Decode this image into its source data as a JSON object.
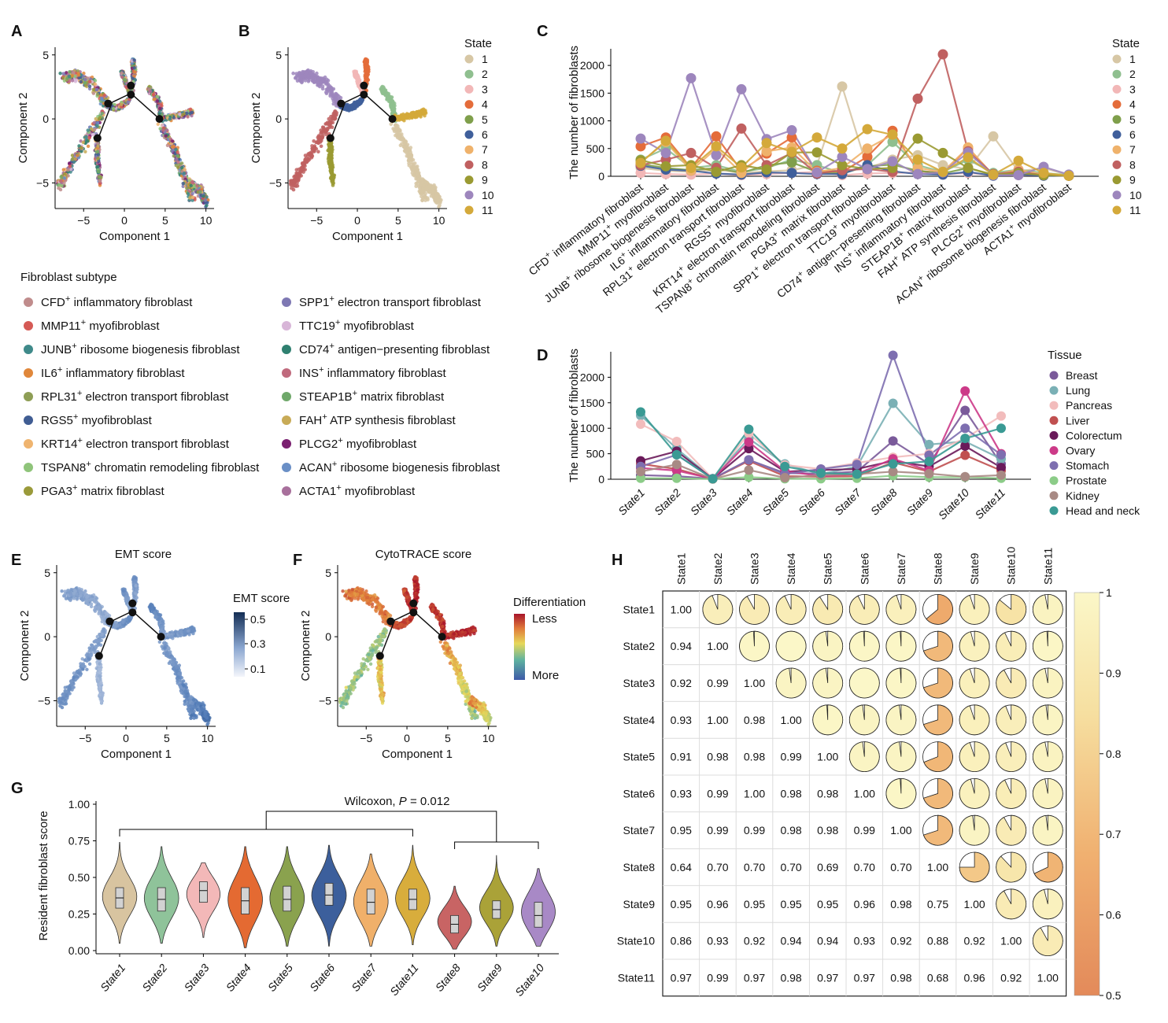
{
  "panel_letters": [
    "A",
    "B",
    "C",
    "D",
    "E",
    "F",
    "G",
    "H"
  ],
  "colors": {
    "states": [
      "#d7c7a5",
      "#8fbf8f",
      "#f2b7b7",
      "#e46c3a",
      "#7f9f4b",
      "#3f5f9b",
      "#efb26b",
      "#c06060",
      "#9a9a32",
      "#9d86bd",
      "#d4a93a"
    ],
    "subtypes": [
      "#c08c8c",
      "#d55a55",
      "#3f8a8a",
      "#e0873a",
      "#8e9e55",
      "#405d93",
      "#efb46f",
      "#8fc47a",
      "#9a9a3a",
      "#7e78b3",
      "#d8b6d8",
      "#2f8070",
      "#c06a7d",
      "#6fa86a",
      "#c8ab57",
      "#7a2070",
      "#6a8fc6",
      "#a8709c"
    ],
    "tissues": [
      "#7a5a9a",
      "#7ab0b5",
      "#f2bcbc",
      "#c05050",
      "#6a1a5a",
      "#cc3a88",
      "#7e6fb0",
      "#8ccc88",
      "#a88a84",
      "#3a9a94"
    ],
    "violins": [
      "#d8c4a0",
      "#8fc39a",
      "#f3b8b8",
      "#e46a32",
      "#8aa24e",
      "#3c5f9c",
      "#f0b06a",
      "#d8ad3c",
      "#c86464",
      "#aaa238",
      "#a889c6"
    ]
  },
  "panel_a": {
    "xlabel": "Component 1",
    "ylabel": "Component 2",
    "xticks": [
      "−5",
      "0",
      "5",
      "10"
    ],
    "yticks": [
      "5",
      "0",
      "−5"
    ],
    "nodes": [
      "1",
      "2",
      "3",
      "4",
      "5"
    ]
  },
  "panel_b": {
    "xlabel": "Component 1",
    "ylabel": "Component 2",
    "xticks": [
      "−5",
      "0",
      "5",
      "10"
    ],
    "yticks": [
      "5",
      "0",
      "−5"
    ],
    "legend_title": "State",
    "legend": [
      "1",
      "2",
      "3",
      "4",
      "5",
      "6",
      "7",
      "8",
      "9",
      "10",
      "11"
    ]
  },
  "subtype_legend": {
    "title": "Fibroblast subtype",
    "items": [
      {
        "pre": "CFD",
        "sup": "+",
        "post": " inflammatory fibroblast"
      },
      {
        "pre": "MMP11",
        "sup": "+",
        "post": " myofibroblast"
      },
      {
        "pre": "JUNB",
        "sup": "+",
        "post": " ribosome biogenesis fibroblast"
      },
      {
        "pre": "IL6",
        "sup": "+",
        "post": " inflammatory fibroblast"
      },
      {
        "pre": "RPL31",
        "sup": "+",
        "post": " electron transport fibroblast"
      },
      {
        "pre": "RGS5",
        "sup": "+",
        "post": " myofibroblast"
      },
      {
        "pre": "KRT14",
        "sup": "+",
        "post": " electron transport fibroblast"
      },
      {
        "pre": "TSPAN8",
        "sup": "+",
        "post": " chromatin remodeling fibroblast"
      },
      {
        "pre": "PGA3",
        "sup": "+",
        "post": " matrix fibroblast"
      },
      {
        "pre": "SPP1",
        "sup": "+",
        "post": " electron transport fibroblast"
      },
      {
        "pre": "TTC19",
        "sup": "+",
        "post": " myofibroblast"
      },
      {
        "pre": "CD74",
        "sup": "+",
        "post": " antigen−presenting fibroblast"
      },
      {
        "pre": "INS",
        "sup": "+",
        "post": " inflammatory fibroblast"
      },
      {
        "pre": "STEAP1B",
        "sup": "+",
        "post": " matrix fibroblast"
      },
      {
        "pre": "FAH",
        "sup": "+",
        "post": " ATP synthesis fibroblast"
      },
      {
        "pre": "PLCG2",
        "sup": "+",
        "post": " myofibroblast"
      },
      {
        "pre": "ACAN",
        "sup": "+",
        "post": " ribosome biogenesis fibroblast"
      },
      {
        "pre": "ACTA1",
        "sup": "+",
        "post": " myofibroblast"
      }
    ]
  },
  "panel_e": {
    "title": "EMT score",
    "xlabel": "Component 1",
    "ylabel": "Component 2",
    "xticks": [
      "−5",
      "0",
      "5",
      "10"
    ],
    "yticks": [
      "5",
      "0",
      "−5"
    ],
    "colorbar_title": "EMT score",
    "colorbar_ticks": [
      "0.5",
      "0.3",
      "0.1"
    ]
  },
  "panel_f": {
    "title": "CytoTRACE score",
    "xlabel": "Component 1",
    "ylabel": "Component 2",
    "xticks": [
      "−5",
      "0",
      "5",
      "10"
    ],
    "yticks": [
      "5",
      "0",
      "−5"
    ],
    "colorbar_title": "Differentiation",
    "colorbar_top": "Less",
    "colorbar_bottom": "More"
  },
  "chart_data": [
    {
      "panel": "C",
      "type": "line",
      "ylabel": "The number of fibroblasts",
      "yticks": [
        0,
        500,
        1000,
        1500,
        2000
      ],
      "ylim": [
        0,
        2300
      ],
      "legend_title": "State",
      "categories": [
        {
          "pre": "CFD",
          "post": " inflammatory fibroblast"
        },
        {
          "pre": "MMP11",
          "post": " myofibroblast"
        },
        {
          "pre": "JUNB",
          "post": " ribosome biogenesis fibroblast"
        },
        {
          "pre": "IL6",
          "post": " inflammatory fibroblast"
        },
        {
          "pre": "RPL31",
          "post": " electron transport fibroblast"
        },
        {
          "pre": "RGS5",
          "post": " myofibroblast"
        },
        {
          "pre": "KRT14",
          "post": " electron transport fibroblast"
        },
        {
          "pre": "TSPAN8",
          "post": " chromatin remodeling fibroblast"
        },
        {
          "pre": "PGA3",
          "post": " matrix fibroblast"
        },
        {
          "pre": "SPP1",
          "post": " electron transport fibroblast"
        },
        {
          "pre": "TTC19",
          "post": " myofibroblast"
        },
        {
          "pre": "CD74",
          "post": " antigen−presenting fibroblast"
        },
        {
          "pre": "INS",
          "post": " inflammatory fibroblast"
        },
        {
          "pre": "STEAP1B",
          "post": " matrix fibroblast"
        },
        {
          "pre": "FAH",
          "post": " ATP synthesis fibroblast"
        },
        {
          "pre": "PLCG2",
          "post": " myofibroblast"
        },
        {
          "pre": "ACAN",
          "post": " ribosome biogenesis fibroblast"
        },
        {
          "pre": "ACTA1",
          "post": " myofibroblast"
        }
      ],
      "series": [
        {
          "name": "1",
          "values": [
            150,
            100,
            80,
            120,
            60,
            90,
            110,
            200,
            1620,
            150,
            300,
            380,
            200,
            130,
            720,
            90,
            150,
            20
          ]
        },
        {
          "name": "2",
          "values": [
            300,
            500,
            150,
            200,
            80,
            150,
            300,
            200,
            60,
            200,
            620,
            200,
            80,
            300,
            60,
            120,
            60,
            20
          ]
        },
        {
          "name": "3",
          "values": [
            60,
            40,
            30,
            50,
            20,
            40,
            60,
            80,
            20,
            50,
            60,
            70,
            30,
            60,
            20,
            20,
            20,
            10
          ]
        },
        {
          "name": "4",
          "values": [
            540,
            700,
            150,
            720,
            100,
            410,
            700,
            100,
            80,
            350,
            820,
            100,
            60,
            510,
            20,
            80,
            20,
            10
          ]
        },
        {
          "name": "5",
          "values": [
            220,
            150,
            110,
            150,
            60,
            200,
            250,
            80,
            50,
            180,
            210,
            100,
            50,
            150,
            20,
            40,
            20,
            10
          ]
        },
        {
          "name": "6",
          "values": [
            190,
            120,
            100,
            50,
            30,
            70,
            60,
            40,
            40,
            200,
            90,
            40,
            30,
            80,
            10,
            30,
            10,
            10
          ]
        },
        {
          "name": "7",
          "values": [
            250,
            620,
            100,
            500,
            60,
            450,
            520,
            80,
            150,
            500,
            750,
            150,
            80,
            520,
            20,
            120,
            30,
            10
          ]
        },
        {
          "name": "8",
          "values": [
            200,
            300,
            420,
            150,
            860,
            200,
            420,
            50,
            110,
            130,
            80,
            1400,
            2200,
            450,
            40,
            80,
            20,
            10
          ]
        },
        {
          "name": "9",
          "values": [
            290,
            180,
            200,
            80,
            200,
            120,
            430,
            430,
            200,
            130,
            150,
            680,
            420,
            150,
            30,
            60,
            20,
            10
          ]
        },
        {
          "name": "10",
          "values": [
            680,
            420,
            1770,
            380,
            1570,
            670,
            830,
            70,
            350,
            130,
            270,
            40,
            70,
            430,
            20,
            20,
            170,
            30
          ]
        },
        {
          "name": "11",
          "values": [
            240,
            640,
            150,
            540,
            160,
            600,
            440,
            700,
            500,
            850,
            750,
            300,
            80,
            340,
            30,
            280,
            60,
            10
          ]
        }
      ]
    },
    {
      "panel": "D",
      "type": "line",
      "ylabel": "The number of fibroblasts",
      "yticks": [
        0,
        500,
        1000,
        1500,
        2000
      ],
      "ylim": [
        0,
        2500
      ],
      "legend_title": "Tissue",
      "categories": [
        "State1",
        "State2",
        "State3",
        "State4",
        "State5",
        "State6",
        "State7",
        "State8",
        "State9",
        "State10",
        "State11"
      ],
      "series": [
        {
          "name": "Breast",
          "values": [
            80,
            60,
            10,
            380,
            120,
            110,
            150,
            750,
            300,
            1350,
            300
          ]
        },
        {
          "name": "Lung",
          "values": [
            1250,
            600,
            10,
            800,
            300,
            100,
            250,
            1490,
            680,
            740,
            400
          ]
        },
        {
          "name": "Pancreas",
          "values": [
            1080,
            740,
            10,
            900,
            280,
            200,
            320,
            430,
            500,
            800,
            1240
          ]
        },
        {
          "name": "Liver",
          "values": [
            300,
            200,
            5,
            360,
            60,
            50,
            60,
            330,
            150,
            470,
            170
          ]
        },
        {
          "name": "Colorectum",
          "values": [
            360,
            550,
            10,
            600,
            150,
            180,
            200,
            360,
            250,
            650,
            230
          ]
        },
        {
          "name": "Ovary",
          "values": [
            220,
            170,
            10,
            730,
            160,
            60,
            100,
            400,
            170,
            1730,
            500
          ]
        },
        {
          "name": "Stomach",
          "values": [
            250,
            480,
            10,
            380,
            100,
            200,
            290,
            2430,
            470,
            1000,
            480
          ]
        },
        {
          "name": "Prostate",
          "values": [
            20,
            20,
            5,
            40,
            10,
            10,
            20,
            70,
            40,
            40,
            20
          ]
        },
        {
          "name": "Kidney",
          "values": [
            150,
            290,
            5,
            180,
            30,
            80,
            100,
            150,
            110,
            50,
            80
          ]
        },
        {
          "name": "Head and neck",
          "values": [
            1320,
            480,
            10,
            980,
            250,
            120,
            100,
            300,
            350,
            800,
            1000
          ]
        }
      ]
    },
    {
      "panel": "G",
      "type": "violin",
      "ylabel": "Resident fibroblast score",
      "yticks": [
        "0.00",
        "0.25",
        "0.50",
        "0.75",
        "1.00"
      ],
      "ylim": [
        0,
        1
      ],
      "annotation_pre": "Wilcoxon, ",
      "annotation_p": "P",
      "annotation_post": " = 0.012",
      "categories": [
        "State1",
        "State2",
        "State3",
        "State4",
        "State5",
        "State6",
        "State7",
        "State11",
        "State8",
        "State9",
        "State10"
      ],
      "median": [
        0.36,
        0.35,
        0.41,
        0.34,
        0.35,
        0.38,
        0.33,
        0.35,
        0.18,
        0.28,
        0.24
      ],
      "q1": [
        0.29,
        0.27,
        0.33,
        0.25,
        0.27,
        0.31,
        0.25,
        0.28,
        0.12,
        0.22,
        0.16
      ],
      "q3": [
        0.43,
        0.43,
        0.47,
        0.43,
        0.44,
        0.46,
        0.42,
        0.42,
        0.24,
        0.34,
        0.33
      ],
      "min": [
        0.05,
        0.05,
        0.09,
        0.02,
        0.03,
        0.03,
        0.03,
        0.04,
        0.01,
        0.03,
        0.03
      ],
      "max": [
        0.74,
        0.71,
        0.6,
        0.71,
        0.71,
        0.72,
        0.66,
        0.72,
        0.44,
        0.65,
        0.56
      ]
    },
    {
      "panel": "H",
      "type": "heatmap",
      "labels": [
        "State1",
        "State2",
        "State3",
        "State4",
        "State5",
        "State6",
        "State7",
        "State8",
        "State9",
        "State10",
        "State11"
      ],
      "colorbar_ticks": [
        1,
        0.9,
        0.8,
        0.7,
        0.6,
        0.5
      ],
      "range": [
        0.5,
        1
      ],
      "lower": [
        [
          1.0
        ],
        [
          0.94,
          1.0
        ],
        [
          0.92,
          0.99,
          1.0
        ],
        [
          0.93,
          1.0,
          0.98,
          1.0
        ],
        [
          0.91,
          0.98,
          0.98,
          0.99,
          1.0
        ],
        [
          0.93,
          0.99,
          1.0,
          0.98,
          0.98,
          1.0
        ],
        [
          0.95,
          0.99,
          0.99,
          0.98,
          0.98,
          0.99,
          1.0
        ],
        [
          0.64,
          0.7,
          0.7,
          0.7,
          0.69,
          0.7,
          0.7,
          1.0
        ],
        [
          0.95,
          0.96,
          0.95,
          0.95,
          0.95,
          0.96,
          0.98,
          0.75,
          1.0
        ],
        [
          0.86,
          0.93,
          0.92,
          0.94,
          0.94,
          0.93,
          0.92,
          0.88,
          0.92,
          1.0
        ],
        [
          0.97,
          0.99,
          0.97,
          0.98,
          0.97,
          0.97,
          0.98,
          0.68,
          0.96,
          0.92,
          1.0
        ]
      ]
    }
  ]
}
